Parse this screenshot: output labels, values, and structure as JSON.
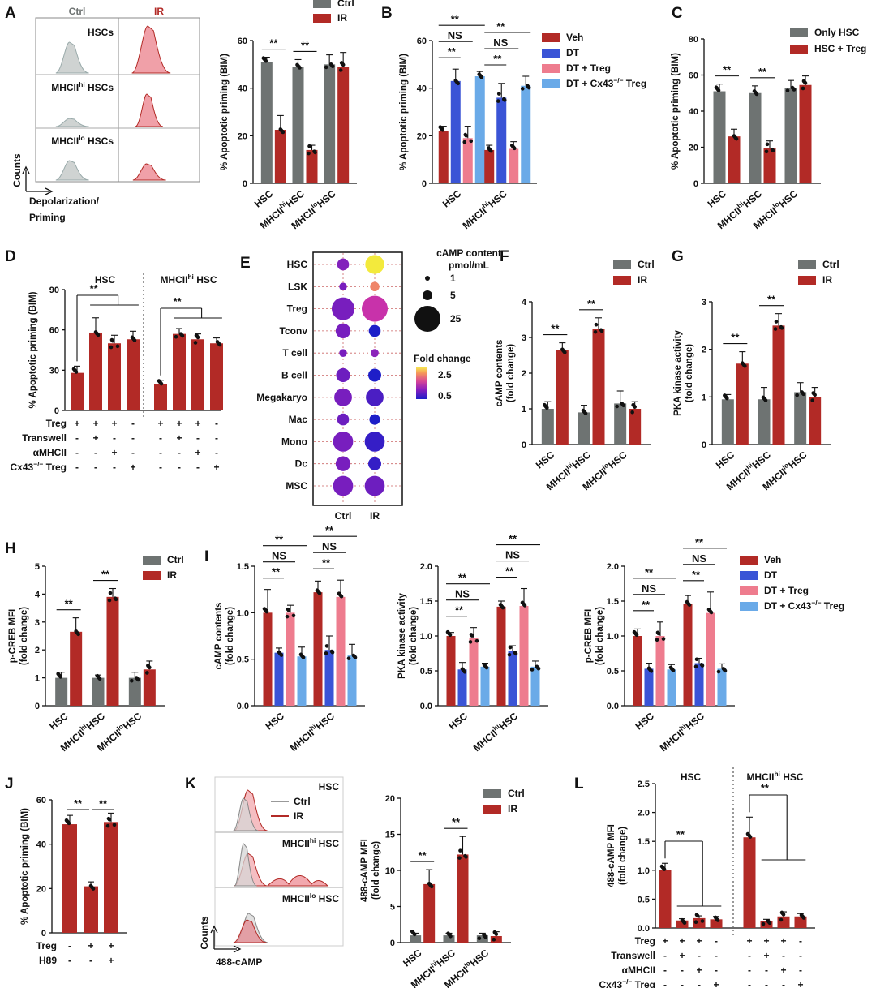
{
  "colors": {
    "ctrl": "#6e7372",
    "ir": "#b22a26",
    "pink": "#ee7c8e",
    "blue": "#3a54d6",
    "lightblue": "#6aaae8",
    "dot": "#111111"
  },
  "panels": {
    "A": {
      "label": "A",
      "flow": {
        "col_labels": [
          "Ctrl",
          "IR"
        ],
        "row_labels": [
          "HSCs",
          "MHCII<sup>hi</sup> HSCs",
          "MHCII<sup>lo</sup> HSCs"
        ],
        "ylabel": "Counts",
        "xlabel": "Depolarization/",
        "xlabel2": "Priming"
      }
    },
    "B": {
      "label": "B"
    },
    "C": {
      "label": "C"
    },
    "D": {
      "label": "D"
    },
    "E": {
      "label": "E"
    },
    "F": {
      "label": "F"
    },
    "G": {
      "label": "G"
    },
    "H": {
      "label": "H"
    },
    "I": {
      "label": "I"
    },
    "J": {
      "label": "J"
    },
    "K": {
      "label": "K",
      "flow": {
        "legend": [
          "Ctrl",
          "IR"
        ],
        "row_labels": [
          "HSC",
          "MHCII<sup>hi</sup> HSC",
          "MHCII<sup>lo</sup> HSC"
        ],
        "ylabel": "Counts",
        "xlabel": "488-cAMP"
      }
    },
    "L": {
      "label": "L"
    }
  },
  "chart_data": [
    {
      "id": "A",
      "type": "bar",
      "ylabel": "% Apoptotic priming (BIM)",
      "ylim": [
        0,
        60
      ],
      "yticks": [
        0,
        20,
        40,
        60
      ],
      "categories": [
        "HSC",
        "MHCII<sup>hi</sup>HSC",
        "MHCII<sup>lo</sup>HSC"
      ],
      "series": [
        {
          "name": "Ctrl",
          "color": "ctrl",
          "values": [
            51,
            49,
            50
          ]
        },
        {
          "name": "IR",
          "color": "ir",
          "values": [
            22.5,
            14,
            49
          ]
        }
      ],
      "errors": [
        [
          2,
          3,
          4
        ],
        [
          6,
          2,
          6
        ]
      ],
      "legend": [
        "Ctrl",
        "IR"
      ],
      "sig": [
        {
          "cat": 0,
          "text": "**"
        },
        {
          "cat": 1,
          "text": "**"
        }
      ]
    },
    {
      "id": "B",
      "type": "bar",
      "ylabel": "% Apoptotic priming (BIM)",
      "ylim": [
        0,
        60
      ],
      "yticks": [
        0,
        20,
        40,
        60
      ],
      "categories": [
        "HSC",
        "MHCII<sup>hi</sup>HSC"
      ],
      "series": [
        {
          "name": "Veh",
          "color": "ir",
          "values": [
            22,
            14
          ]
        },
        {
          "name": "DT",
          "color": "blue",
          "values": [
            43,
            36
          ]
        },
        {
          "name": "DT + Treg",
          "color": "pink",
          "values": [
            19,
            14.5
          ]
        },
        {
          "name": "DT + Cx43<sup>−/−</sup> Treg",
          "color": "lightblue",
          "values": [
            45,
            41
          ]
        }
      ],
      "errors": [
        [
          2,
          2
        ],
        [
          5,
          6
        ],
        [
          5,
          3
        ],
        [
          2,
          4
        ]
      ],
      "legend": [
        "Veh",
        "DT",
        "DT + Treg",
        "DT + Cx43<sup>−/−</sup> Treg"
      ],
      "brackets": [
        "**",
        "NS",
        "**"
      ]
    },
    {
      "id": "C",
      "type": "bar",
      "ylabel": "% Apoptotic priming (BIM)",
      "ylim": [
        0,
        80
      ],
      "yticks": [
        0,
        20,
        40,
        60,
        80
      ],
      "categories": [
        "HSC",
        "MHCII<sup>hi</sup>HSC",
        "MHCII<sup>lo</sup>HSC"
      ],
      "series": [
        {
          "name": "Only HSC",
          "color": "ctrl",
          "values": [
            51,
            50,
            53
          ]
        },
        {
          "name": "HSC + Treg",
          "color": "ir",
          "values": [
            26,
            19.5,
            54.5
          ]
        }
      ],
      "errors": [
        [
          4,
          4,
          4
        ],
        [
          4,
          4,
          5
        ]
      ],
      "legend": [
        "Only HSC",
        "HSC + Treg"
      ],
      "sig": [
        {
          "cat": 0,
          "text": "**"
        },
        {
          "cat": 1,
          "text": "**"
        }
      ]
    },
    {
      "id": "D",
      "type": "bar",
      "ylabel": "% Apoptotic priming (BIM)",
      "ylim": [
        0,
        90
      ],
      "yticks": [
        0,
        30,
        60,
        90
      ],
      "groups": [
        "HSC",
        "MHCII<sup>hi</sup> HSC"
      ],
      "values": [
        [
          28,
          58,
          50,
          53
        ],
        [
          19.5,
          57,
          53,
          50
        ]
      ],
      "errors": [
        [
          5,
          11,
          6,
          6
        ],
        [
          3,
          4,
          4,
          4
        ]
      ],
      "table_rows": [
        {
          "label": "Treg",
          "signs": [
            "+",
            "+",
            "+",
            "-"
          ]
        },
        {
          "label": "Transwell",
          "signs": [
            "-",
            "+",
            "-",
            "-"
          ]
        },
        {
          "label": "αMHCII",
          "signs": [
            "-",
            "-",
            "+",
            "-"
          ]
        },
        {
          "label": "Cx43<sup>−/−</sup> Treg",
          "signs": [
            "-",
            "-",
            "-",
            "+"
          ]
        }
      ],
      "sig": "**"
    },
    {
      "id": "E",
      "type": "bubble",
      "rows": [
        "HSC",
        "LSK",
        "Treg",
        "Tconv",
        "T cell",
        "B cell",
        "Megakaryo",
        "Mac",
        "Mono",
        "Dc",
        "MSC"
      ],
      "columns": [
        "Ctrl",
        "IR"
      ],
      "size_ctrl": [
        3,
        0.5,
        25,
        6,
        0.5,
        5,
        10,
        3,
        14,
        6,
        14
      ],
      "size_ir": [
        12,
        1.2,
        55,
        3,
        0.6,
        4,
        10,
        2,
        14,
        4,
        14
      ],
      "fold_ctrl": [
        0.95,
        0.9,
        0.9,
        0.9,
        0.9,
        0.85,
        0.9,
        0.85,
        0.9,
        0.9,
        0.9
      ],
      "fold_ir": [
        2.4,
        1.8,
        1.3,
        0.5,
        1.0,
        0.45,
        0.7,
        0.5,
        0.6,
        0.6,
        0.85
      ],
      "size_legend": {
        "title": "cAMP content",
        "title2": "pmol/mL",
        "values": [
          1,
          5,
          25
        ]
      },
      "color_legend": {
        "title": "Fold change",
        "max": 2.5,
        "min": 0.5
      }
    },
    {
      "id": "F",
      "type": "bar",
      "ylabel": "cAMP contents",
      "ylabel2": "(fold change)",
      "ylim": [
        0,
        4
      ],
      "yticks": [
        0,
        1,
        2,
        3,
        4
      ],
      "categories": [
        "HSC",
        "MHCII<sup>hi</sup>HSC",
        "MHCII<sup>lo</sup>HSC"
      ],
      "series": [
        {
          "name": "Ctrl",
          "color": "ctrl",
          "values": [
            1,
            0.9,
            1.15
          ]
        },
        {
          "name": "IR",
          "color": "ir",
          "values": [
            2.65,
            3.25,
            1
          ]
        }
      ],
      "errors": [
        [
          0.2,
          0.2,
          0.35
        ],
        [
          0.2,
          0.3,
          0.2
        ]
      ],
      "legend": [
        "Ctrl",
        "IR"
      ],
      "sig": [
        {
          "cat": 0,
          "text": "**"
        },
        {
          "cat": 1,
          "text": "**"
        }
      ]
    },
    {
      "id": "G",
      "type": "bar",
      "ylabel": "PKA kinase activity",
      "ylabel2": "(fold change)",
      "ylim": [
        0,
        3
      ],
      "yticks": [
        0,
        1,
        2,
        3
      ],
      "categories": [
        "HSC",
        "MHCII<sup>hi</sup>HSC",
        "MHCII<sup>lo</sup>HSC"
      ],
      "series": [
        {
          "name": "Ctrl",
          "color": "ctrl",
          "values": [
            0.95,
            0.95,
            1.1
          ]
        },
        {
          "name": "IR",
          "color": "ir",
          "values": [
            1.7,
            2.5,
            1
          ]
        }
      ],
      "errors": [
        [
          0.1,
          0.25,
          0.2
        ],
        [
          0.25,
          0.25,
          0.2
        ]
      ],
      "legend": [
        "Ctrl",
        "IR"
      ],
      "sig": [
        {
          "cat": 0,
          "text": "**"
        },
        {
          "cat": 1,
          "text": "**"
        }
      ]
    },
    {
      "id": "H",
      "type": "bar",
      "ylabel": "p-CREB MFI",
      "ylabel2": "(fold change)",
      "ylim": [
        0,
        5
      ],
      "yticks": [
        0,
        1,
        2,
        3,
        4,
        5
      ],
      "categories": [
        "HSC",
        "MHCII<sup>hi</sup>HSC",
        "MHCII<sup>lo</sup>HSC"
      ],
      "series": [
        {
          "name": "Ctrl",
          "color": "ctrl",
          "values": [
            1,
            1,
            1
          ]
        },
        {
          "name": "IR",
          "color": "ir",
          "values": [
            2.65,
            3.9,
            1.3
          ]
        }
      ],
      "errors": [
        [
          0.2,
          0.1,
          0.2
        ],
        [
          0.5,
          0.3,
          0.3
        ]
      ],
      "legend": [
        "Ctrl",
        "IR"
      ],
      "sig": [
        {
          "cat": 0,
          "text": "**"
        },
        {
          "cat": 1,
          "text": "**"
        }
      ]
    },
    {
      "id": "I1",
      "type": "bar",
      "ylabel": "cAMP contents",
      "ylabel2": "(fold change)",
      "ylim": [
        0,
        1.5
      ],
      "yticks": [
        "0.0",
        "0.5",
        "1.0",
        "1.5"
      ],
      "categories": [
        "HSC",
        "MHCII<sup>hi</sup>HSC"
      ],
      "series": [
        {
          "name": "Veh",
          "color": "ir",
          "values": [
            1.0,
            1.22
          ]
        },
        {
          "name": "DT",
          "color": "blue",
          "values": [
            0.57,
            0.6
          ]
        },
        {
          "name": "DT + Treg",
          "color": "pink",
          "values": [
            1.0,
            1.17
          ]
        },
        {
          "name": "DT + Cx43<sup>−/−</sup> Treg",
          "color": "lightblue",
          "values": [
            0.53,
            0.54
          ]
        }
      ],
      "errors": [
        [
          0.25,
          0.12
        ],
        [
          0.05,
          0.15
        ],
        [
          0.08,
          0.18
        ],
        [
          0.1,
          0.12
        ]
      ],
      "brackets": [
        "**",
        "NS",
        "**"
      ]
    },
    {
      "id": "I2",
      "type": "bar",
      "ylabel": "PKA kinase activity",
      "ylabel2": "(fold change)",
      "ylim": [
        0,
        2
      ],
      "yticks": [
        "0.0",
        "0.5",
        "1.0",
        "1.5",
        "2.0"
      ],
      "categories": [
        "HSC",
        "MHCII<sup>hi</sup>HSC"
      ],
      "series": [
        {
          "name": "Veh",
          "color": "ir",
          "values": [
            1.0,
            1.42
          ]
        },
        {
          "name": "DT",
          "color": "blue",
          "values": [
            0.52,
            0.78
          ]
        },
        {
          "name": "DT + Treg",
          "color": "pink",
          "values": [
            0.97,
            1.43
          ]
        },
        {
          "name": "DT + Cx43<sup>−/−</sup> Treg",
          "color": "lightblue",
          "values": [
            0.56,
            0.56
          ]
        }
      ],
      "errors": [
        [
          0.05,
          0.08
        ],
        [
          0.1,
          0.08
        ],
        [
          0.15,
          0.25
        ],
        [
          0.05,
          0.08
        ]
      ],
      "brackets": [
        "**",
        "NS",
        "**"
      ]
    },
    {
      "id": "I3",
      "type": "bar",
      "ylabel": "p-CREB MFI",
      "ylabel2": "(fold change)",
      "ylim": [
        0,
        2
      ],
      "yticks": [
        "0.0",
        "0.5",
        "1.0",
        "1.5",
        "2.0"
      ],
      "categories": [
        "HSC",
        "MHCII<sup>hi</sup>HSC"
      ],
      "series": [
        {
          "name": "Veh",
          "color": "ir",
          "values": [
            1.0,
            1.46
          ]
        },
        {
          "name": "DT",
          "color": "blue",
          "values": [
            0.53,
            0.61
          ]
        },
        {
          "name": "DT + Treg",
          "color": "pink",
          "values": [
            1.0,
            1.33
          ]
        },
        {
          "name": "DT + Cx43<sup>−/−</sup> Treg",
          "color": "lightblue",
          "values": [
            0.52,
            0.53
          ]
        }
      ],
      "errors": [
        [
          0.1,
          0.12
        ],
        [
          0.08,
          0.07
        ],
        [
          0.2,
          0.3
        ],
        [
          0.07,
          0.07
        ]
      ],
      "legend": [
        "Veh",
        "DT",
        "DT + Treg",
        "DT + Cx43<sup>−/−</sup> Treg"
      ],
      "brackets": [
        "**",
        "NS",
        "**"
      ]
    },
    {
      "id": "J",
      "type": "bar",
      "ylabel": "% Apoptotic priming (BIM)",
      "ylim": [
        0,
        60
      ],
      "yticks": [
        0,
        20,
        40,
        60
      ],
      "values": [
        49,
        21,
        50
      ],
      "errors": [
        [
          4
        ],
        [
          2
        ],
        [
          4
        ]
      ],
      "table_rows": [
        {
          "label": "Treg",
          "signs": [
            "-",
            "+",
            "+"
          ]
        },
        {
          "label": "H89",
          "signs": [
            "-",
            "-",
            "+"
          ]
        }
      ],
      "sig": [
        "**",
        "**"
      ]
    },
    {
      "id": "K",
      "type": "bar",
      "ylabel": "488-cAMP MFI",
      "ylabel2": "(fold change)",
      "ylim": [
        0,
        20
      ],
      "yticks": [
        0,
        5,
        10,
        15,
        20
      ],
      "categories": [
        "HSC",
        "MHCII<sup>hi</sup>HSC",
        "MHCII<sup>lo</sup>HSC"
      ],
      "series": [
        {
          "name": "Ctrl",
          "color": "ctrl",
          "values": [
            1,
            1,
            1
          ]
        },
        {
          "name": "IR",
          "color": "ir",
          "values": [
            8.1,
            12.2,
            0.9
          ]
        }
      ],
      "errors": [
        [
          0.3,
          0.3,
          0.3
        ],
        [
          2,
          2.5,
          0.6
        ]
      ],
      "legend": [
        "Ctrl",
        "IR"
      ],
      "sig": [
        {
          "cat": 0,
          "text": "**"
        },
        {
          "cat": 1,
          "text": "**"
        }
      ]
    },
    {
      "id": "L",
      "type": "bar",
      "ylabel": "488-cAMP MFI",
      "ylabel2": "(fold change)",
      "ylim": [
        0,
        2.5
      ],
      "yticks": [
        "0.0",
        "0.5",
        "1.0",
        "1.5",
        "2.0",
        "2.5"
      ],
      "groups": [
        "HSC",
        "MHCII<sup>hi</sup> HSC"
      ],
      "values": [
        [
          1.0,
          0.13,
          0.17,
          0.15
        ],
        [
          1.57,
          0.12,
          0.2,
          0.2
        ]
      ],
      "errors": [
        [
          0.12,
          0.03,
          0.04,
          0.05
        ],
        [
          0.35,
          0.03,
          0.08,
          0.05
        ]
      ],
      "table_rows": [
        {
          "label": "Treg",
          "signs": [
            "+",
            "+",
            "+",
            "-"
          ]
        },
        {
          "label": "Transwell",
          "signs": [
            "-",
            "+",
            "-",
            "-"
          ]
        },
        {
          "label": "αMHCII",
          "signs": [
            "-",
            "-",
            "+",
            "-"
          ]
        },
        {
          "label": "Cx43<sup>−/−</sup> Treg",
          "signs": [
            "-",
            "-",
            "-",
            "+"
          ]
        }
      ],
      "sig": "**"
    }
  ]
}
